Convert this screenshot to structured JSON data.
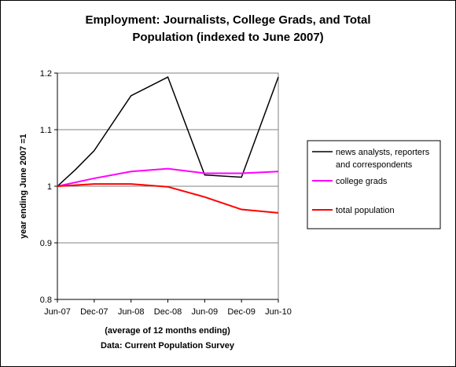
{
  "chart_data": {
    "type": "line",
    "title_line1": "Employment: Journalists, College Grads, and Total",
    "title_line2": "Population (indexed to June 2007)",
    "ylabel": "year ending June 2007 =1",
    "xlabel_line1": "(average of 12 months ending)",
    "xlabel_line2": "Data: Current Population Survey",
    "categories": [
      "Jun-07",
      "Dec-07",
      "Jun-08",
      "Dec-08",
      "Jun-09",
      "Dec-09",
      "Jun-10"
    ],
    "ylim": [
      0.8,
      1.2
    ],
    "yticks": [
      "0.8",
      "0.9",
      "1",
      "1.1",
      "1.2"
    ],
    "grid": true,
    "legend_position": "right",
    "series": [
      {
        "name_line1": "news analysts, reporters",
        "name_line2": "and correspondents",
        "color": "#000000",
        "x": [
          0,
          0.5,
          1,
          2,
          3,
          4,
          5,
          6
        ],
        "values": [
          1.0,
          1.03,
          1.063,
          1.16,
          1.193,
          1.02,
          1.016,
          1.193
        ]
      },
      {
        "name": "college grads",
        "color": "#ff00ff",
        "x": [
          0,
          1,
          2,
          3,
          4,
          5,
          6
        ],
        "values": [
          1.0,
          1.014,
          1.026,
          1.031,
          1.023,
          1.023,
          1.026
        ]
      },
      {
        "name": "total population",
        "color": "#ff0000",
        "x": [
          0,
          1,
          2,
          3,
          4,
          5,
          6
        ],
        "values": [
          1.0,
          1.004,
          1.004,
          0.999,
          0.981,
          0.959,
          0.953
        ]
      }
    ]
  }
}
